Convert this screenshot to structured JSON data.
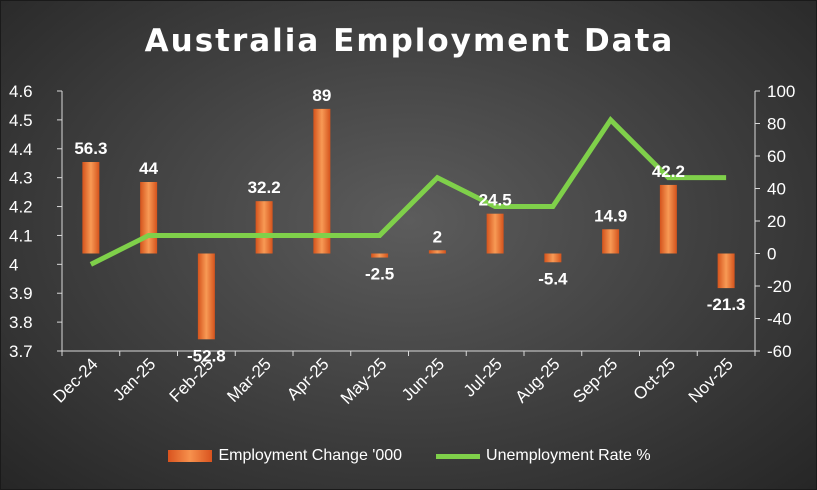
{
  "chart_data": {
    "type": "bar",
    "title": "Australia Employment Data",
    "categories": [
      "Dec-24",
      "Jan-25",
      "Feb-25",
      "Mar-25",
      "Apr-25",
      "May-25",
      "Jun-25",
      "Jul-25",
      "Aug-25",
      "Sep-25",
      "Oct-25",
      "Nov-25"
    ],
    "series": [
      {
        "name": "Employment Change '000",
        "type": "bar",
        "axis": "right",
        "values": [
          56.3,
          44,
          -52.8,
          32.2,
          89,
          -2.5,
          2,
          24.5,
          -5.4,
          14.9,
          42.2,
          -21.3
        ],
        "data_labels": [
          "56.3",
          "44",
          "-52.8",
          "32.2",
          "89",
          "-2.5",
          "2",
          "24.5",
          "-5.4",
          "14.9",
          "42.2",
          "-21.3"
        ],
        "color": "#f07b34"
      },
      {
        "name": "Unemployment Rate %",
        "type": "line",
        "axis": "left",
        "values": [
          4.0,
          4.1,
          4.1,
          4.1,
          4.1,
          4.1,
          4.3,
          4.2,
          4.2,
          4.5,
          4.3,
          4.3
        ],
        "color": "#7fd04a"
      }
    ],
    "left_axis": {
      "ylim": [
        3.7,
        4.6
      ],
      "ticks": [
        "3.7",
        "3.8",
        "3.9",
        "4",
        "4.1",
        "4.2",
        "4.3",
        "4.4",
        "4.5",
        "4.6"
      ]
    },
    "right_axis": {
      "ylim": [
        -60,
        100
      ],
      "ticks": [
        "-60",
        "-40",
        "-20",
        "0",
        "20",
        "40",
        "60",
        "80",
        "100"
      ]
    },
    "grid": false,
    "legend": "bottom"
  }
}
